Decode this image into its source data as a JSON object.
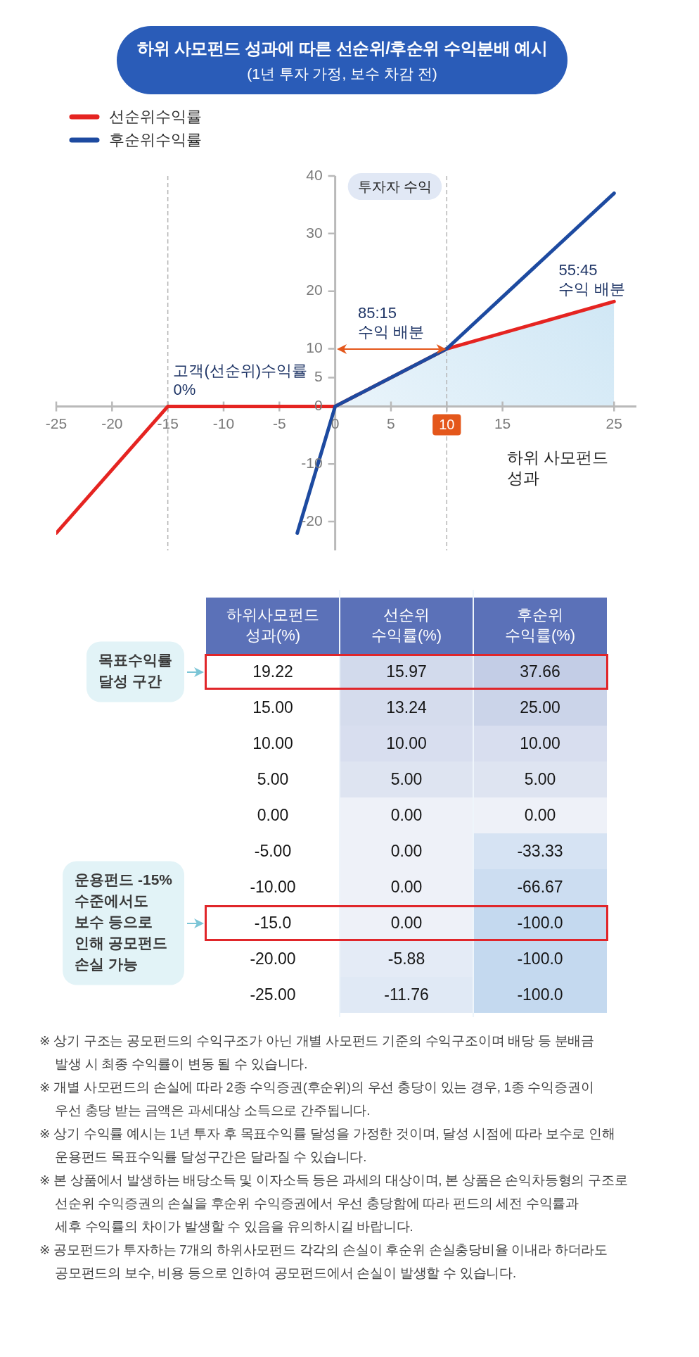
{
  "chart_data": [
    {
      "type": "line",
      "title": "하위 사모펀드 성과에 따른 선순위/후순위 수익분배 예시",
      "subtitle": "(1년 투자 가정, 보수 차감 전)",
      "xlabel": "하위 사모펀드\n성과",
      "ylabel": "투자자 수익",
      "series": [
        {
          "name": "선순위수익률",
          "color": "#e52421",
          "x": [
            -25,
            -15,
            0,
            10,
            25
          ],
          "values": [
            -22,
            0,
            0,
            10,
            18.2
          ]
        },
        {
          "name": "후순위수익률",
          "color": "#1d4aa0",
          "x": [
            -3.4,
            0,
            10,
            25
          ],
          "values": [
            -22,
            0,
            10,
            37
          ]
        },
        {
          "type": "area",
          "color": "#c6e2f3",
          "x": [
            0,
            10,
            25
          ],
          "values": [
            0,
            10,
            18.2
          ]
        }
      ],
      "xlim": [
        -25,
        27
      ],
      "xticks": [
        -25,
        -20,
        -15,
        -10,
        -5,
        0,
        5,
        {
          "value": 10,
          "label": null
        },
        15,
        25
      ],
      "ylim": [
        -25,
        40
      ],
      "yticks": [
        -20,
        -10,
        0,
        5,
        10,
        20,
        30,
        40
      ],
      "ref_lines": [
        {
          "axis": "x",
          "value": -15,
          "color": "#b4b4b4",
          "line_style": "dashed"
        },
        {
          "axis": "x",
          "value": 10,
          "label": "10",
          "color": "#b4b4b4",
          "line_style": "dashed"
        }
      ],
      "annotations": [
        {
          "text": "85:15\n수익 배분",
          "x": 10,
          "y": 10
        },
        {
          "text": "55:45\n수익 배분",
          "x": 23,
          "y": 17.5
        },
        {
          "text": "고객(선순위)수익률\n0%",
          "x": -8.5,
          "y": 0
        }
      ],
      "legend": "top left",
      "marker": "none"
    },
    {
      "type": "heatmap",
      "ylabel": "하위사모펀드\n성과(%)",
      "categories": [
        "선순위\n수익률(%)",
        "후순위\n수익률(%)"
      ],
      "y_categories": [
        "19.22",
        "15.00",
        "10.00",
        "5.00",
        "0.00",
        "-5.00",
        "-10.00",
        "-15.0",
        "-20.00",
        "-25.00"
      ],
      "cells": [
        [
          15.97,
          37.66
        ],
        [
          13.24,
          25
        ],
        [
          10,
          10
        ],
        [
          5,
          5
        ],
        [
          0,
          0
        ],
        [
          0,
          -33.33
        ],
        [
          0,
          -66.67
        ],
        [
          0,
          -100
        ],
        [
          -5.88,
          -100
        ],
        [
          -11.76,
          -100
        ]
      ],
      "cell_labels": [
        [
          "15.97",
          "37.66"
        ],
        [
          "13.24",
          "25.00"
        ],
        [
          "10.00",
          "10.00"
        ],
        [
          "5.00",
          "5.00"
        ],
        [
          "0.00",
          "0.00"
        ],
        [
          "0.00",
          "-33.33"
        ],
        [
          "0.00",
          "-66.67"
        ],
        [
          "0.00",
          "-100.0"
        ],
        [
          "-5.88",
          "-100.0"
        ],
        [
          "-11.76",
          "-100.0"
        ]
      ],
      "annotations": [
        "목표수익률\n달성 구간",
        "운용펀드 -15%\n수준에서도\n보수 등으로\n인해 공모펀드\n손실 가능",
        "※ 상기 구조는 공모펀드의 수익구조가 아닌 개별 사모펀드 기준의 수익구조이며 배당 등 분배금\n발생 시 최종 수익률이 변동 될 수 있습니다.",
        "※ 개별 사모펀드의 손실에 따라 2종 수익증권(후순위)의 우선 충당이 있는 경우, 1종 수익증권이\n우선 충당 받는 금액은 과세대상 소득으로 간주됩니다.",
        "※ 상기 수익률 예시는 1년 투자 후 목표수익률 달성을 가정한 것이며, 달성 시점에 따라 보수로 인해\n운용펀드 목표수익률 달성구간은 달라질 수 있습니다.",
        "※ 본 상품에서 발생하는 배당소득 및 이자소득 등은 과세의 대상이며, 본 상품은 손익차등형의 구조로\n선순위 수익증권의 손실을 후순위 수익증권에서 우선 충당함에 따라 펀드의 세전 수익률과\n세후 수익률의 차이가 발생할 수 있음을 유의하시길 바랍니다.",
        "※ 공모펀드가 투자하는 7개의 하위사모펀드 각각의 손실이 후순위 손실충당비율 이내라 하더라도\n공모펀드의 보수, 비용 등으로 인하여 공모펀드에서 손실이 발생할 수 있습니다."
      ]
    }
  ]
}
